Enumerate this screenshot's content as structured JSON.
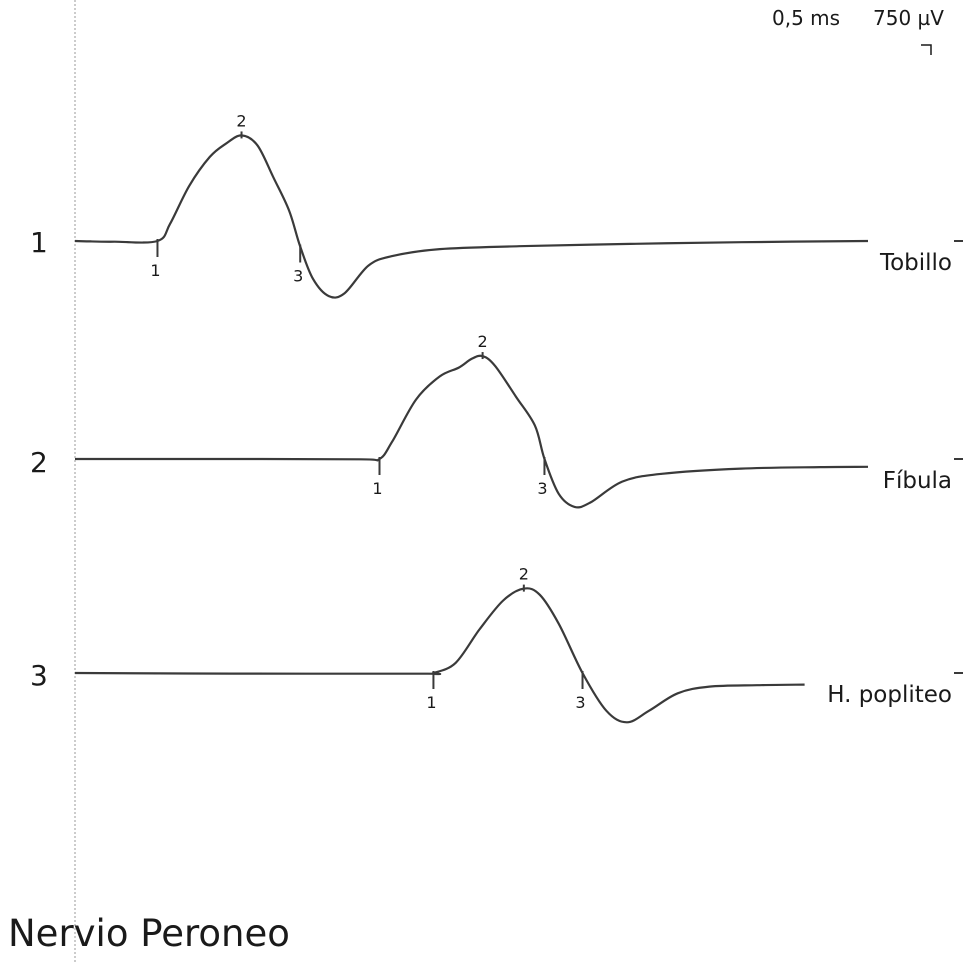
{
  "title": "Nervio Peroneo",
  "scale": {
    "time": "0,5 ms",
    "amplitude": "750 µV"
  },
  "chart_data": {
    "type": "line",
    "title": "Nervio Peroneo",
    "x_unit": "ms",
    "y_unit": "µV",
    "x_per_div": 0.5,
    "y_per_div": 750,
    "series": [
      {
        "channel": "1",
        "name": "Tobillo",
        "markers": [
          {
            "label": "1",
            "x": 0.52,
            "y": 0
          },
          {
            "label": "2",
            "x": 1.05,
            "y": 3640
          },
          {
            "label": "3",
            "x": 1.42,
            "y": -190
          }
        ],
        "points": [
          [
            0,
            0
          ],
          [
            0.1,
            -15
          ],
          [
            0.25,
            -25
          ],
          [
            0.52,
            0
          ],
          [
            0.6,
            600
          ],
          [
            0.72,
            1900
          ],
          [
            0.85,
            2900
          ],
          [
            0.95,
            3350
          ],
          [
            1.05,
            3640
          ],
          [
            1.15,
            3300
          ],
          [
            1.25,
            2200
          ],
          [
            1.35,
            1050
          ],
          [
            1.42,
            -190
          ],
          [
            1.5,
            -1300
          ],
          [
            1.6,
            -1900
          ],
          [
            1.7,
            -1800
          ],
          [
            1.85,
            -850
          ],
          [
            2.0,
            -520
          ],
          [
            2.3,
            -280
          ],
          [
            2.8,
            -180
          ],
          [
            3.5,
            -100
          ],
          [
            4.2,
            -40
          ],
          [
            5.0,
            0
          ]
        ]
      },
      {
        "channel": "2",
        "name": "Fíbula",
        "markers": [
          {
            "label": "1",
            "x": 1.92,
            "y": 0
          },
          {
            "label": "2",
            "x": 2.57,
            "y": 3550
          },
          {
            "label": "3",
            "x": 2.96,
            "y": 0
          }
        ],
        "points": [
          [
            0,
            0
          ],
          [
            1.0,
            0
          ],
          [
            1.8,
            -10
          ],
          [
            1.92,
            0
          ],
          [
            2.0,
            600
          ],
          [
            2.15,
            2050
          ],
          [
            2.3,
            2850
          ],
          [
            2.42,
            3150
          ],
          [
            2.5,
            3450
          ],
          [
            2.57,
            3550
          ],
          [
            2.65,
            3200
          ],
          [
            2.78,
            2150
          ],
          [
            2.9,
            1150
          ],
          [
            2.96,
            0
          ],
          [
            3.05,
            -1200
          ],
          [
            3.15,
            -1650
          ],
          [
            3.25,
            -1500
          ],
          [
            3.45,
            -780
          ],
          [
            3.7,
            -510
          ],
          [
            4.2,
            -330
          ],
          [
            4.7,
            -280
          ],
          [
            5.0,
            -270
          ]
        ]
      },
      {
        "channel": "3",
        "name": "H. popliteo",
        "markers": [
          {
            "label": "1",
            "x": 2.26,
            "y": 0
          },
          {
            "label": "2",
            "x": 2.83,
            "y": 2910
          },
          {
            "label": "3",
            "x": 3.2,
            "y": 0
          }
        ],
        "points": [
          [
            0,
            0
          ],
          [
            1.0,
            -20
          ],
          [
            2.2,
            -25
          ],
          [
            2.26,
            0
          ],
          [
            2.4,
            350
          ],
          [
            2.55,
            1500
          ],
          [
            2.7,
            2500
          ],
          [
            2.83,
            2910
          ],
          [
            2.93,
            2700
          ],
          [
            3.05,
            1700
          ],
          [
            3.2,
            0
          ],
          [
            3.35,
            -1300
          ],
          [
            3.48,
            -1700
          ],
          [
            3.62,
            -1300
          ],
          [
            3.8,
            -700
          ],
          [
            4.0,
            -470
          ],
          [
            4.3,
            -420
          ],
          [
            4.6,
            -400
          ]
        ]
      }
    ]
  },
  "colors": {
    "trace": "#3a3a3a",
    "gridline": "#9a9a9a"
  }
}
